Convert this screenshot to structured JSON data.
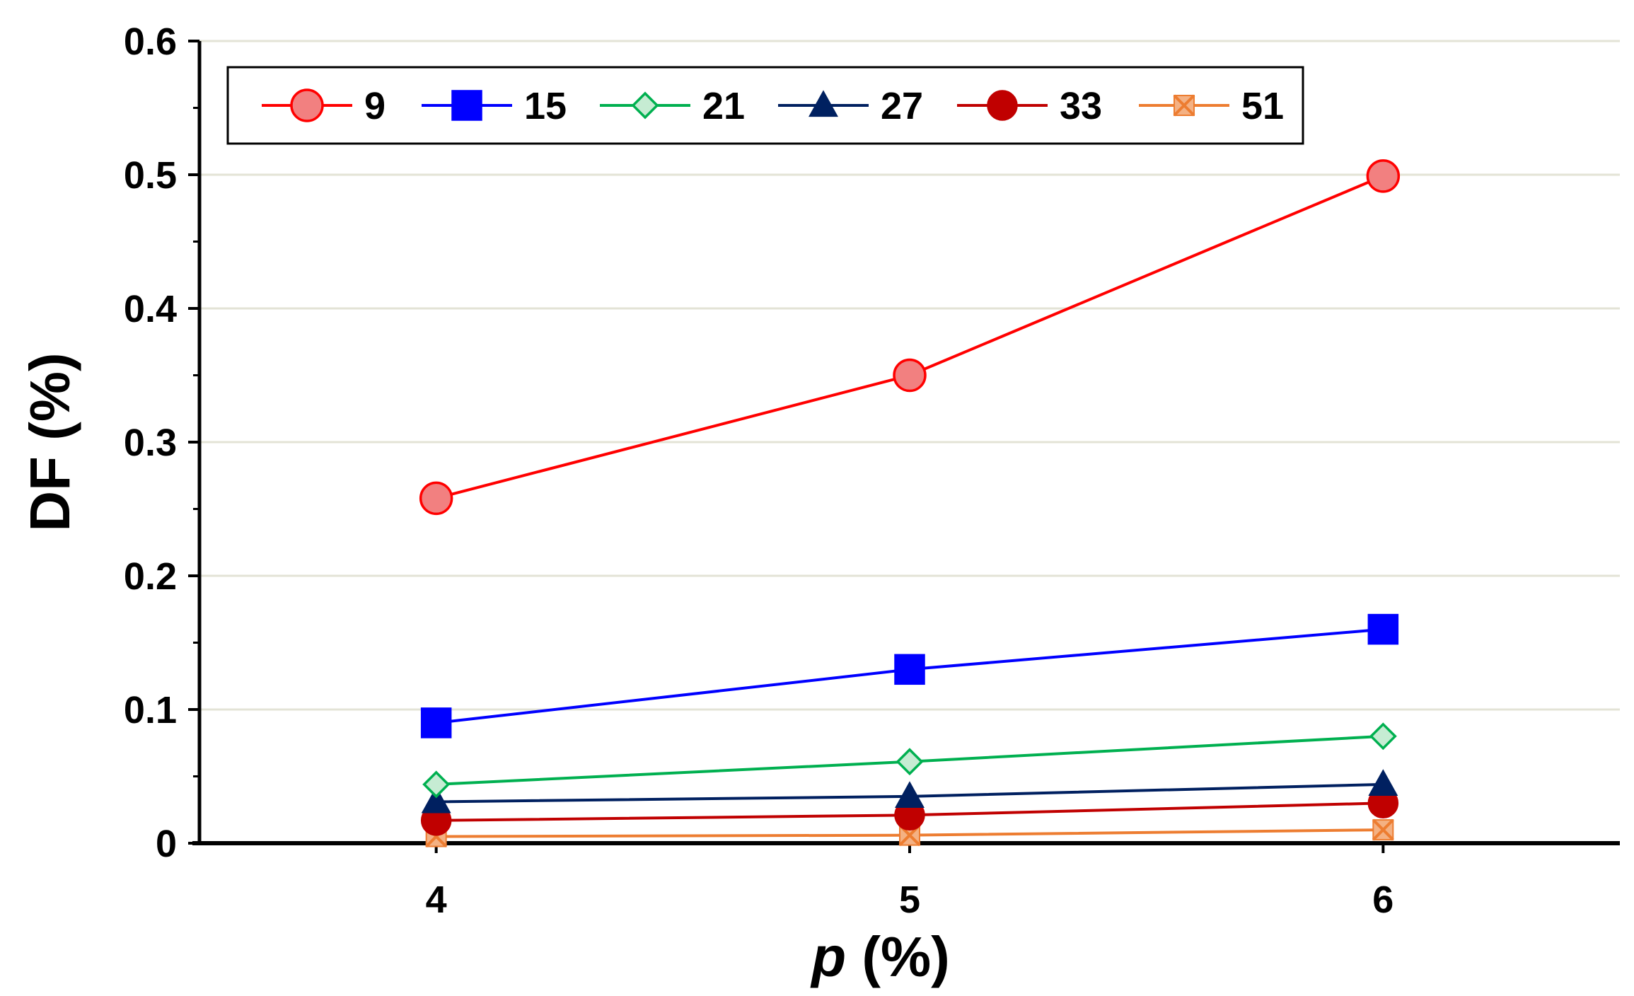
{
  "chart_data": {
    "type": "line",
    "title": "",
    "xlabel_var": "p",
    "xlabel_unit": " (%)",
    "ylabel": "DF (%)",
    "x": [
      4,
      5,
      6
    ],
    "x_tick_labels": [
      "4",
      "5",
      "6"
    ],
    "xlim": [
      3.5,
      6.5
    ],
    "ylim": [
      0,
      0.6
    ],
    "y_ticks": [
      0,
      0.1,
      0.2,
      0.3,
      0.4,
      0.5,
      0.6
    ],
    "y_tick_labels": [
      "0",
      "0.1",
      "0.2",
      "0.3",
      "0.4",
      "0.5",
      "0.6"
    ],
    "grid": true,
    "legend_position": "top-left",
    "series": [
      {
        "name": "9",
        "values": [
          0.258,
          0.35,
          0.499
        ],
        "color": "#ff0000",
        "marker": "circle",
        "fill": "#f28080",
        "line_color": "#ff0000"
      },
      {
        "name": "15",
        "values": [
          0.09,
          0.13,
          0.16
        ],
        "color": "#0000ff",
        "marker": "square",
        "fill": "#0000ff",
        "line_color": "#0000ff"
      },
      {
        "name": "21",
        "values": [
          0.044,
          0.061,
          0.08
        ],
        "color": "#00b050",
        "marker": "diamond",
        "fill": "#c6ecd3",
        "line_color": "#00b050"
      },
      {
        "name": "27",
        "values": [
          0.031,
          0.035,
          0.044
        ],
        "color": "#002060",
        "marker": "triangle",
        "fill": "#002060",
        "line_color": "#002060"
      },
      {
        "name": "33",
        "values": [
          0.017,
          0.021,
          0.03
        ],
        "color": "#c00000",
        "marker": "circle",
        "fill": "#c00000",
        "line_color": "#c00000"
      },
      {
        "name": "51",
        "values": [
          0.005,
          0.006,
          0.01
        ],
        "color": "#ed7d31",
        "marker": "x-square",
        "fill": "#f4b183",
        "line_color": "#ed7d31"
      }
    ]
  }
}
